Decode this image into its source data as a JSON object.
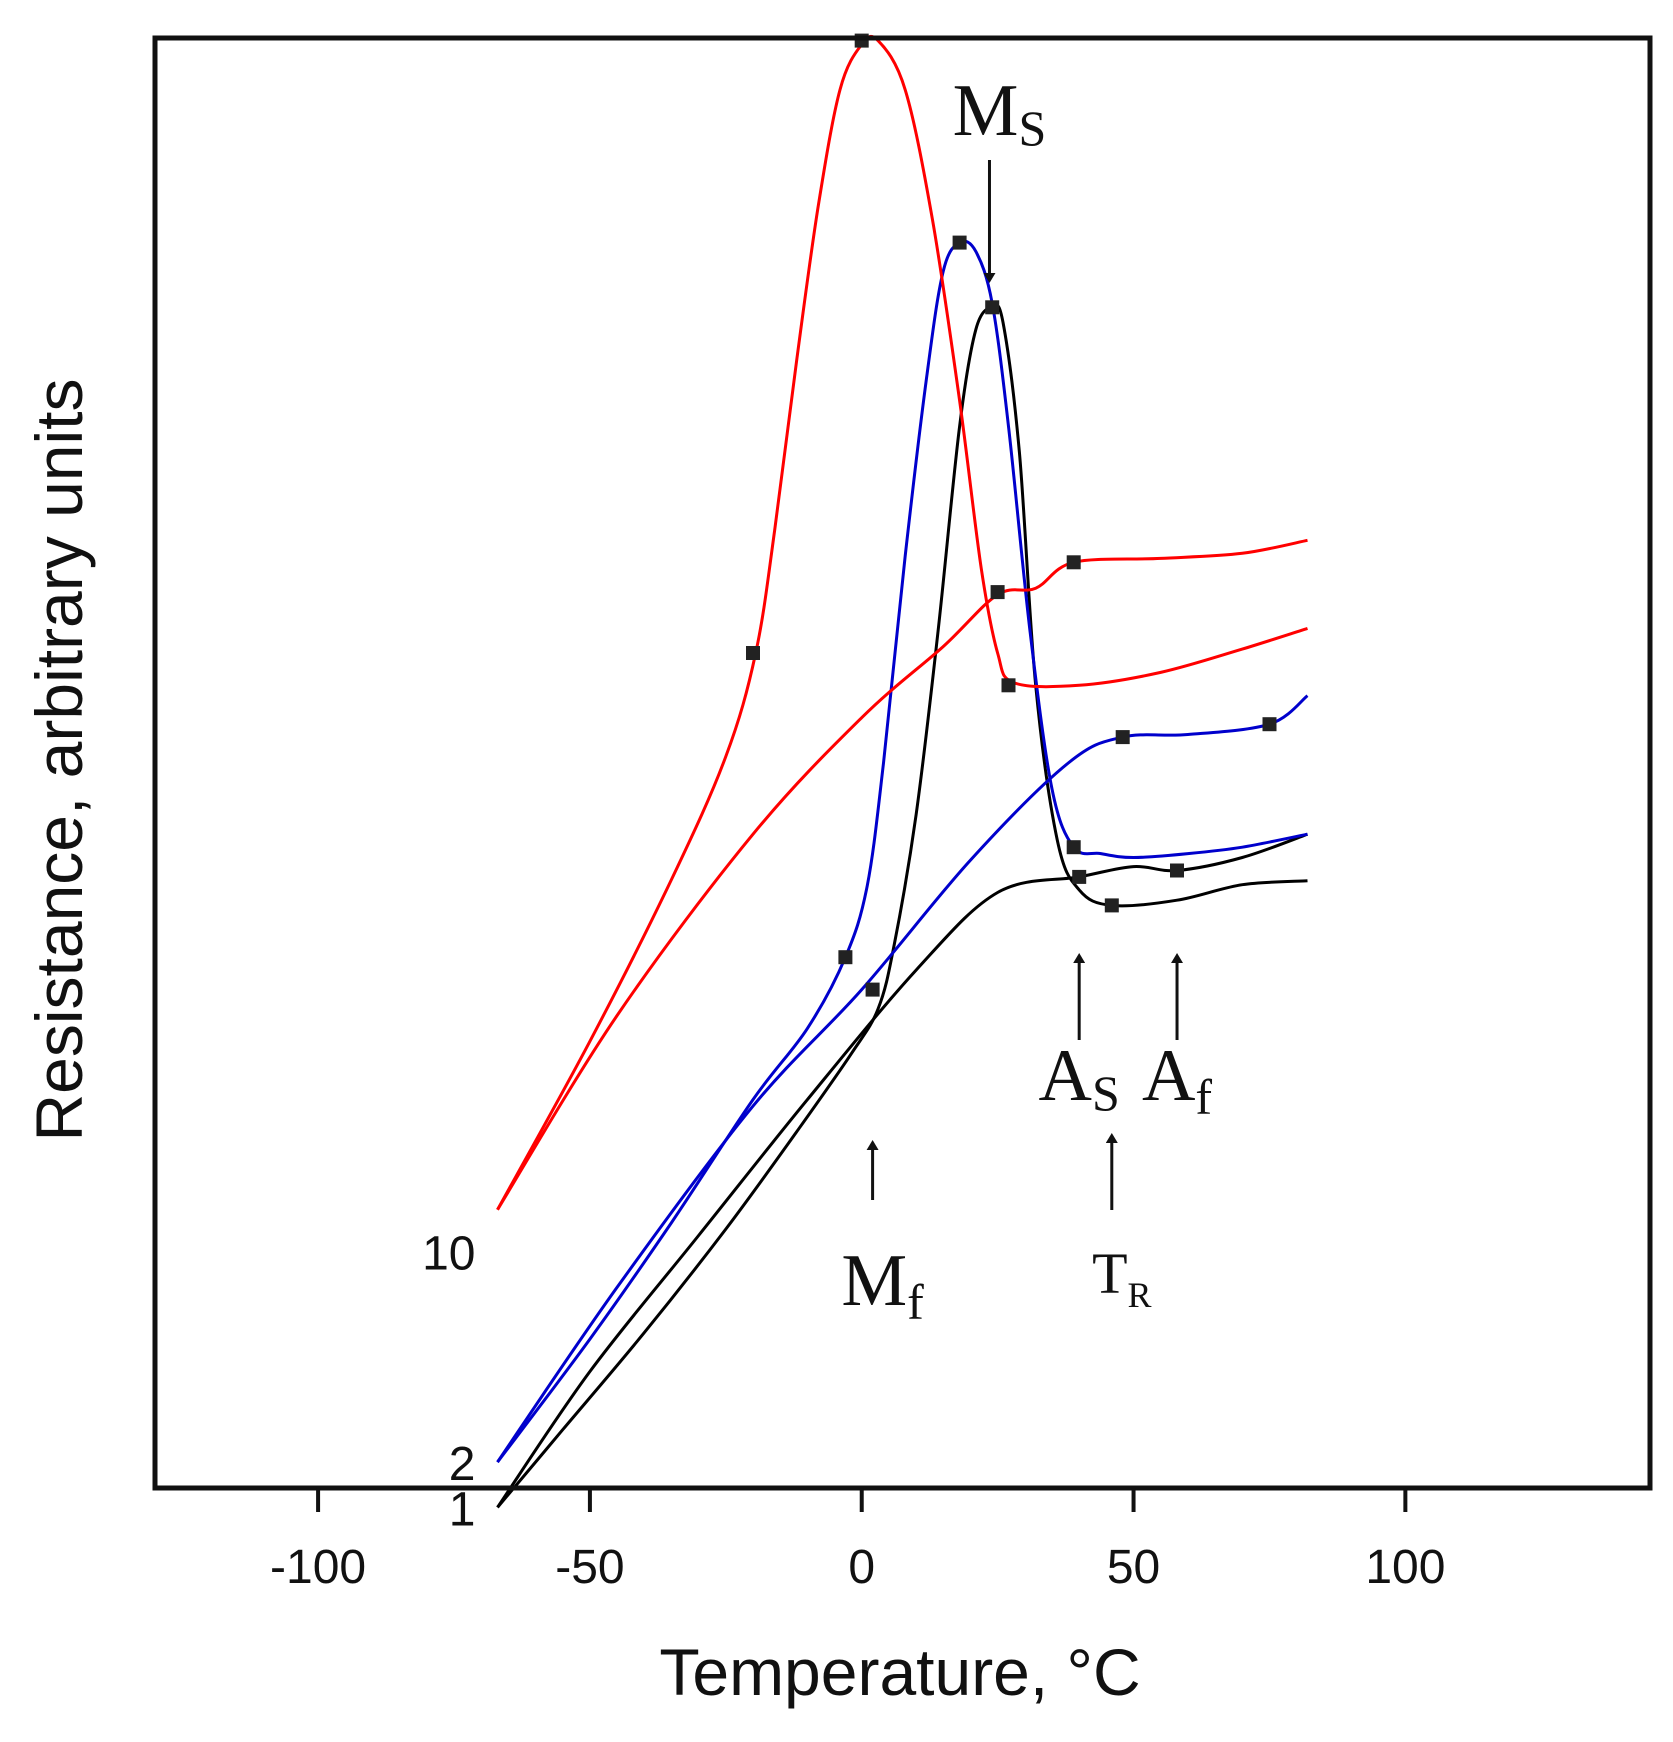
{
  "chart_data": {
    "type": "line",
    "title": "",
    "xlabel": "Temperature, °C",
    "ylabel": "Resistance, arbitrary units",
    "xlim": [
      -130,
      145
    ],
    "ylim": [
      -0.4,
      10.8
    ],
    "xticks": [
      -100,
      -50,
      0,
      50,
      100
    ],
    "grid": false,
    "curve_colors": {
      "black": "#000000",
      "blue": "#0000cc",
      "red": "#ff0000"
    },
    "series": [
      {
        "name": "1",
        "color": "#000000",
        "sample": "1",
        "branches": [
          {
            "id": "1-cool",
            "points": [
              [
                82,
                4.29
              ],
              [
                70,
                4.26
              ],
              [
                58,
                4.14
              ],
              [
                46,
                4.1
              ],
              [
                40,
                4.22
              ],
              [
                36,
                4.6
              ],
              [
                32,
                5.8
              ],
              [
                29,
                7.6
              ],
              [
                26,
                8.6
              ],
              [
                24,
                8.72
              ],
              [
                21,
                8.55
              ],
              [
                18,
                7.8
              ],
              [
                14,
                6.2
              ],
              [
                10,
                4.8
              ],
              [
                6,
                3.8
              ],
              [
                3,
                3.3
              ],
              [
                -2,
                2.95
              ],
              [
                -12,
                2.35
              ],
              [
                -25,
                1.6
              ],
              [
                -40,
                0.8
              ],
              [
                -55,
                0.05
              ],
              [
                -67,
                -0.55
              ]
            ],
            "markers": [
              [
                24,
                8.72
              ],
              [
                46,
                4.1
              ]
            ]
          },
          {
            "id": "1-heat",
            "points": [
              [
                -67,
                -0.55
              ],
              [
                -50,
                0.5
              ],
              [
                -30,
                1.55
              ],
              [
                -10,
                2.6
              ],
              [
                10,
                3.6
              ],
              [
                25,
                4.2
              ],
              [
                40,
                4.32
              ],
              [
                50,
                4.4
              ],
              [
                58,
                4.37
              ],
              [
                70,
                4.47
              ],
              [
                82,
                4.65
              ]
            ],
            "markers": [
              [
                40,
                4.32
              ],
              [
                58,
                4.37
              ]
            ]
          }
        ]
      },
      {
        "name": "2",
        "color": "#0000cc",
        "sample": "2",
        "branches": [
          {
            "id": "2-cool",
            "points": [
              [
                82,
                4.65
              ],
              [
                70,
                4.55
              ],
              [
                60,
                4.5
              ],
              [
                50,
                4.47
              ],
              [
                44,
                4.5
              ],
              [
                39,
                4.55
              ],
              [
                35,
                5.0
              ],
              [
                31,
                6.2
              ],
              [
                27,
                7.8
              ],
              [
                24,
                8.75
              ],
              [
                21,
                9.15
              ],
              [
                18,
                9.22
              ],
              [
                15,
                9.0
              ],
              [
                12,
                8.2
              ],
              [
                8,
                6.8
              ],
              [
                4,
                5.2
              ],
              [
                1,
                4.25
              ],
              [
                -3,
                3.7
              ],
              [
                -10,
                3.15
              ],
              [
                -20,
                2.6
              ],
              [
                -35,
                1.65
              ],
              [
                -50,
                0.75
              ],
              [
                -67,
                -0.2
              ]
            ],
            "markers": [
              [
                18,
                9.22
              ],
              [
                39,
                4.55
              ],
              [
                -3,
                3.7
              ]
            ]
          },
          {
            "id": "2-heat",
            "points": [
              [
                -67,
                -0.2
              ],
              [
                -45,
                1.15
              ],
              [
                -20,
                2.55
              ],
              [
                0,
                3.45
              ],
              [
                20,
                4.45
              ],
              [
                38,
                5.2
              ],
              [
                48,
                5.4
              ],
              [
                60,
                5.42
              ],
              [
                75,
                5.5
              ],
              [
                82,
                5.72
              ]
            ],
            "markers": [
              [
                2,
                3.45
              ],
              [
                48,
                5.4
              ],
              [
                75,
                5.5
              ]
            ]
          }
        ]
      },
      {
        "name": "10",
        "color": "#ff0000",
        "sample": "10",
        "branches": [
          {
            "id": "10-cool",
            "points": [
              [
                82,
                6.24
              ],
              [
                70,
                6.08
              ],
              [
                55,
                5.9
              ],
              [
                40,
                5.8
              ],
              [
                28,
                5.82
              ],
              [
                25,
                6.05
              ],
              [
                22,
                6.7
              ],
              [
                18,
                8.0
              ],
              [
                13,
                9.4
              ],
              [
                8,
                10.4
              ],
              [
                3,
                10.78
              ],
              [
                0,
                10.75
              ],
              [
                -4,
                10.4
              ],
              [
                -8,
                9.5
              ],
              [
                -12,
                8.3
              ],
              [
                -16,
                7.0
              ],
              [
                -19.5,
                6.05
              ],
              [
                -25,
                5.25
              ],
              [
                -35,
                4.3
              ],
              [
                -50,
                3.05
              ],
              [
                -67,
                1.75
              ]
            ],
            "markers": [
              [
                0,
                10.78
              ],
              [
                27,
                5.8
              ],
              [
                -20,
                6.05
              ]
            ]
          },
          {
            "id": "10-heat",
            "points": [
              [
                -67,
                1.75
              ],
              [
                -45,
                3.25
              ],
              [
                -20,
                4.65
              ],
              [
                0,
                5.55
              ],
              [
                15,
                6.1
              ],
              [
                25,
                6.5
              ],
              [
                32,
                6.55
              ],
              [
                39,
                6.75
              ],
              [
                55,
                6.78
              ],
              [
                70,
                6.82
              ],
              [
                82,
                6.92
              ]
            ],
            "markers": [
              [
                25,
                6.52
              ],
              [
                39,
                6.75
              ]
            ]
          }
        ]
      }
    ],
    "curve_labels": [
      {
        "text": "1",
        "x": -67,
        "y": -0.55
      },
      {
        "text": "2",
        "x": -67,
        "y": -0.2
      },
      {
        "text": "10",
        "x": -67,
        "y": 1.75
      }
    ],
    "annotations": [
      {
        "main": "M",
        "sub": "S",
        "x": 23.5,
        "direction": "down"
      },
      {
        "main": "M",
        "sub": "f",
        "x": 2,
        "direction": "up"
      },
      {
        "main": "A",
        "sub": "S",
        "x": 40,
        "direction": "up"
      },
      {
        "main": "A",
        "sub": "f",
        "x": 58,
        "direction": "up"
      },
      {
        "main": "T",
        "sub": "R",
        "x": 46,
        "direction": "up"
      }
    ]
  }
}
